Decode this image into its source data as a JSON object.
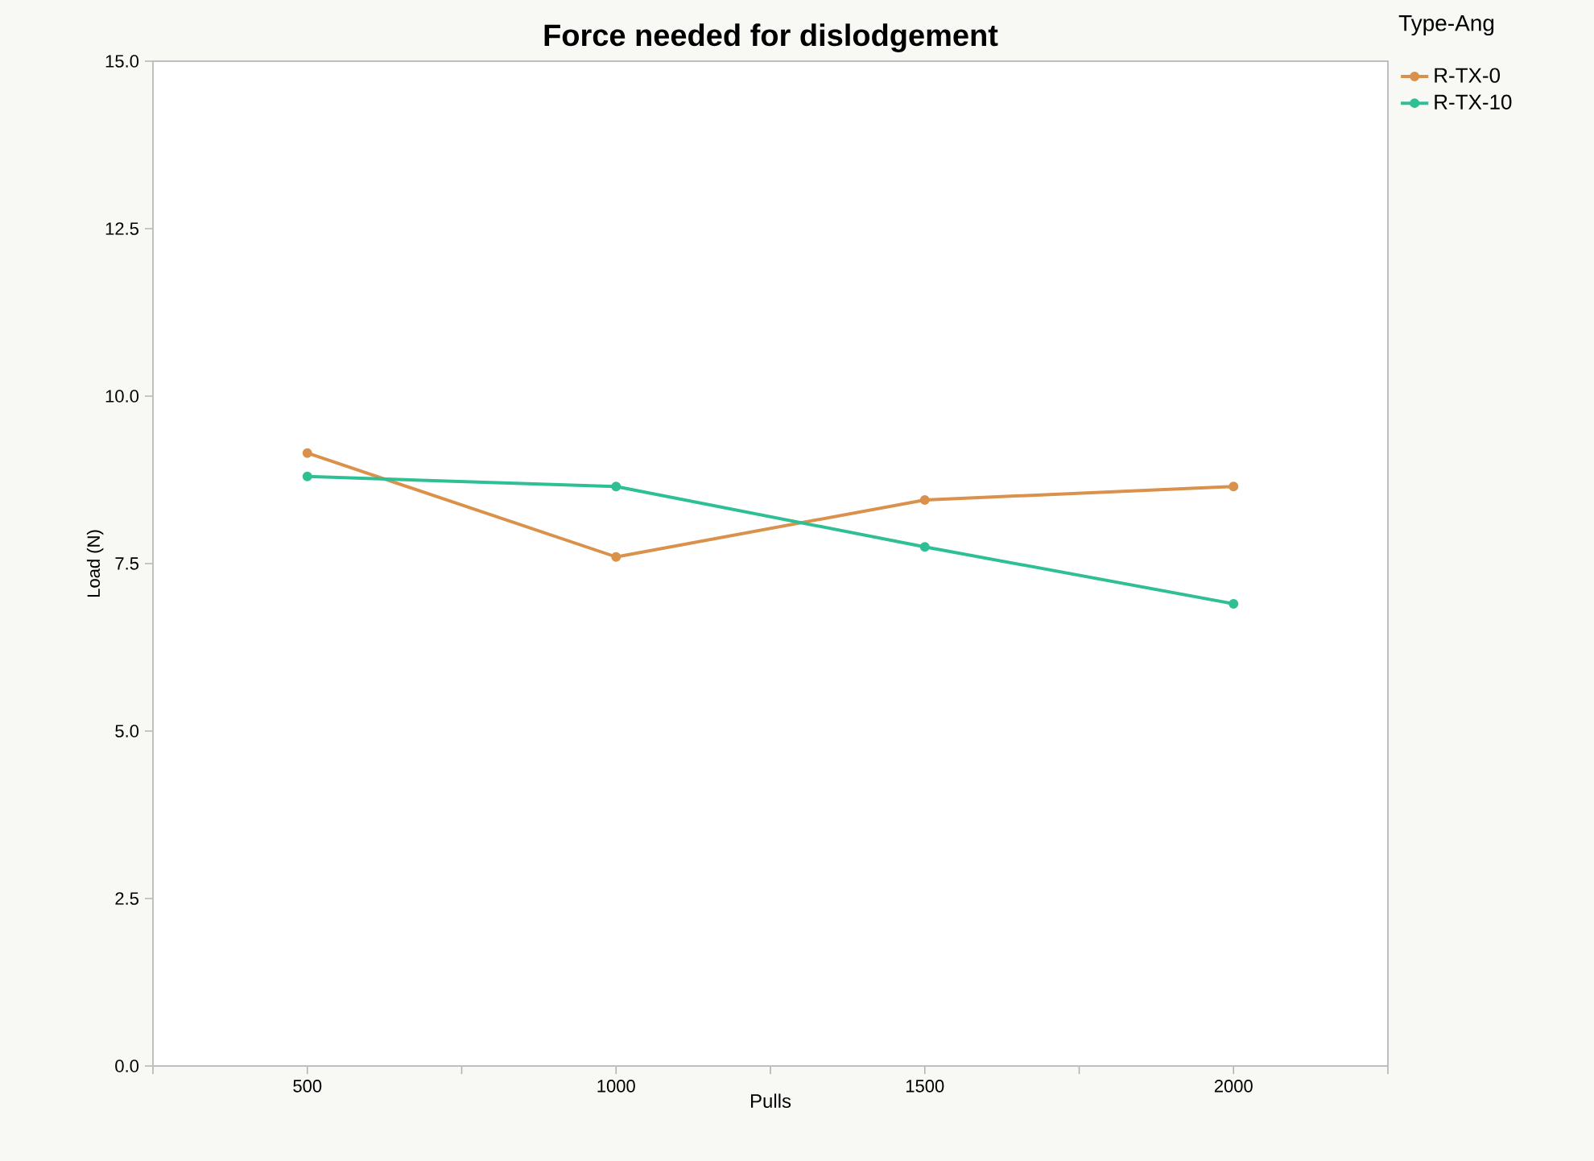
{
  "chart_data": {
    "type": "line",
    "title": "Force needed for dislodgement",
    "xlabel": "Pulls",
    "ylabel": "Load (N)",
    "legend_title": "Type-Ang",
    "x": [
      500,
      1000,
      1500,
      2000
    ],
    "series": [
      {
        "name": "R-TX-0",
        "color": "#d9914b",
        "values": [
          9.15,
          7.6,
          8.45,
          8.65
        ]
      },
      {
        "name": "R-TX-10",
        "color": "#2fbf94",
        "values": [
          8.8,
          8.65,
          7.75,
          6.9
        ]
      }
    ],
    "xlim": [
      250,
      2250
    ],
    "xticks": [
      {
        "value": 250,
        "label": null
      },
      500,
      {
        "value": 750,
        "label": null
      },
      1000,
      {
        "value": 1250,
        "label": null
      },
      1500,
      {
        "value": 1750,
        "label": null
      },
      2000,
      {
        "value": 2250,
        "label": null
      }
    ],
    "ylim": [
      0,
      15
    ],
    "yticks": [
      {
        "value": 0,
        "label": "0.0"
      },
      {
        "value": 2.5,
        "label": "2.5"
      },
      {
        "value": 5,
        "label": "5.0"
      },
      {
        "value": 7.5,
        "label": "7.5"
      },
      {
        "value": 10,
        "label": "10.0"
      },
      {
        "value": 12.5,
        "label": "12.5"
      },
      {
        "value": 15,
        "label": "15.0"
      }
    ],
    "grid": false,
    "legend": "top right",
    "marker": "circle",
    "line_style": "solid"
  }
}
